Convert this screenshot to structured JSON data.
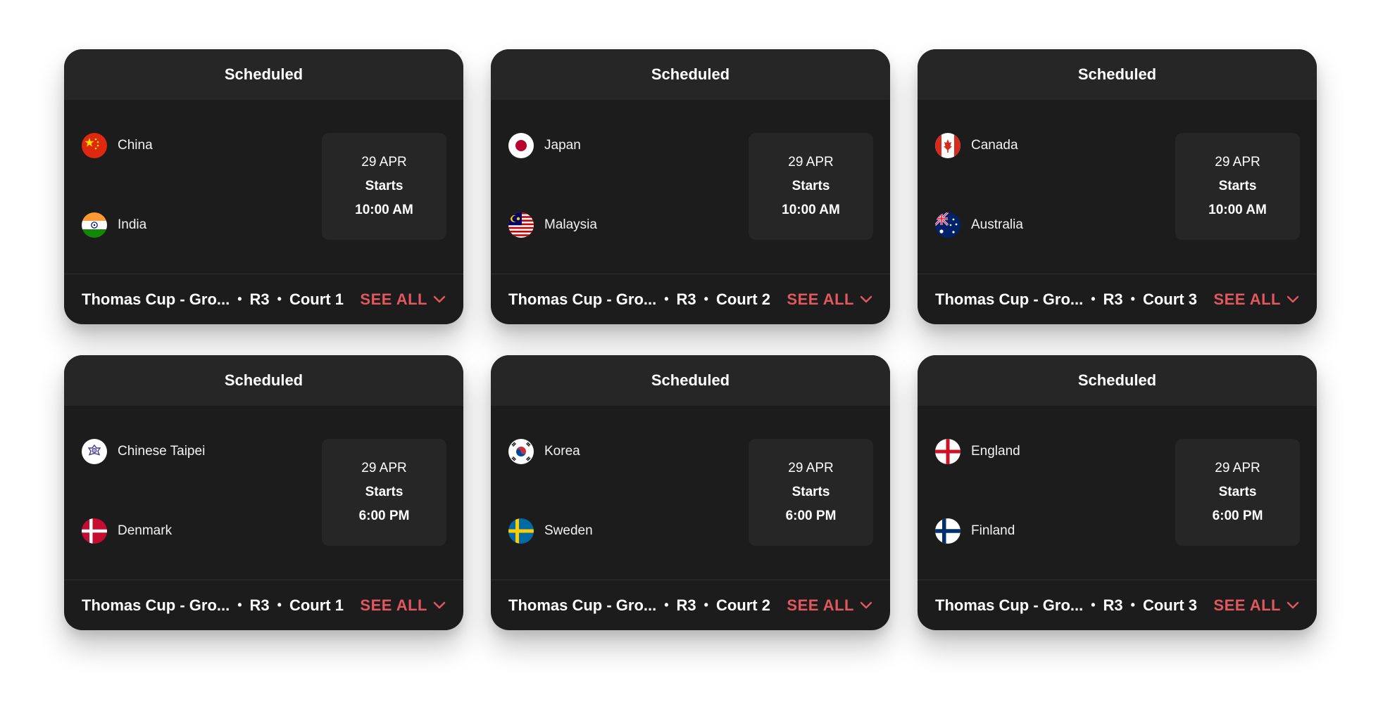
{
  "cards": [
    {
      "status": "Scheduled",
      "team1": {
        "name": "China",
        "flag": "china-flag-icon"
      },
      "team2": {
        "name": "India",
        "flag": "india-flag-icon"
      },
      "date": "29 APR",
      "starts_label": "Starts",
      "time": "10:00 AM",
      "event": "Thomas Cup - Gro...",
      "round": "R3",
      "court": "Court 1",
      "see_all": "SEE ALL"
    },
    {
      "status": "Scheduled",
      "team1": {
        "name": "Japan",
        "flag": "japan-flag-icon"
      },
      "team2": {
        "name": "Malaysia",
        "flag": "malaysia-flag-icon"
      },
      "date": "29 APR",
      "starts_label": "Starts",
      "time": "10:00 AM",
      "event": "Thomas Cup - Gro...",
      "round": "R3",
      "court": "Court 2",
      "see_all": "SEE ALL"
    },
    {
      "status": "Scheduled",
      "team1": {
        "name": "Canada",
        "flag": "canada-flag-icon"
      },
      "team2": {
        "name": "Australia",
        "flag": "australia-flag-icon"
      },
      "date": "29 APR",
      "starts_label": "Starts",
      "time": "10:00 AM",
      "event": "Thomas Cup - Gro...",
      "round": "R3",
      "court": "Court 3",
      "see_all": "SEE ALL"
    },
    {
      "status": "Scheduled",
      "team1": {
        "name": "Chinese Taipei",
        "flag": "chinese-taipei-flag-icon"
      },
      "team2": {
        "name": "Denmark",
        "flag": "denmark-flag-icon"
      },
      "date": "29 APR",
      "starts_label": "Starts",
      "time": "6:00 PM",
      "event": "Thomas Cup - Gro...",
      "round": "R3",
      "court": "Court 1",
      "see_all": "SEE ALL"
    },
    {
      "status": "Scheduled",
      "team1": {
        "name": "Korea",
        "flag": "korea-flag-icon"
      },
      "team2": {
        "name": "Sweden",
        "flag": "sweden-flag-icon"
      },
      "date": "29 APR",
      "starts_label": "Starts",
      "time": "6:00 PM",
      "event": "Thomas Cup - Gro...",
      "round": "R3",
      "court": "Court 2",
      "see_all": "SEE ALL"
    },
    {
      "status": "Scheduled",
      "team1": {
        "name": "England",
        "flag": "england-flag-icon"
      },
      "team2": {
        "name": "Finland",
        "flag": "finland-flag-icon"
      },
      "date": "29 APR",
      "starts_label": "Starts",
      "time": "6:00 PM",
      "event": "Thomas Cup - Gro...",
      "round": "R3",
      "court": "Court 3",
      "see_all": "SEE ALL"
    }
  ],
  "colors": {
    "card_bg": "#1c1c1c",
    "header_bg": "#262626",
    "accent": "#e2585f"
  }
}
